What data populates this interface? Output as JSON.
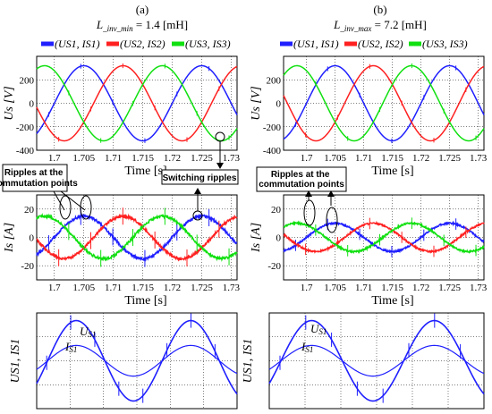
{
  "panels": [
    {
      "label": "(a)",
      "inductance_sym": "L",
      "inductance_sub": "_inv_min",
      "inductance_value": " = 1.4 [mH]"
    },
    {
      "label": "(b)",
      "inductance_sym": "L",
      "inductance_sub": "_inv_max",
      "inductance_value": " = 7.2 [mH]"
    }
  ],
  "legend": [
    {
      "text": "(US1, IS1)",
      "color": "#1f1fff"
    },
    {
      "text": "(US2, IS2)",
      "color": "#ff2020"
    },
    {
      "text": "(US3, IS3)",
      "color": "#10e010"
    }
  ],
  "callouts": {
    "a_top": "Switching ripples",
    "a_mid": "Ripples at the commutation points",
    "b_mid": "Ripples at the commutation points"
  },
  "chart_data": [
    {
      "id": "a_voltage",
      "type": "line",
      "ylabel": "Us [V]",
      "xlabel": "Time [s]",
      "xlim": [
        1.697,
        1.731
      ],
      "ylim": [
        -400,
        400
      ],
      "xticks": [
        1.7,
        1.705,
        1.71,
        1.715,
        1.72,
        1.725,
        1.73
      ],
      "yticks": [
        -400,
        -200,
        0,
        200
      ],
      "series": [
        {
          "name": "US1",
          "color": "#1f1fff",
          "amplitude": 320,
          "phase_deg": 0
        },
        {
          "name": "US2",
          "color": "#ff2020",
          "amplitude": 320,
          "phase_deg": -120
        },
        {
          "name": "US3",
          "color": "#10e010",
          "amplitude": 320,
          "phase_deg": 120
        }
      ],
      "grid": true
    },
    {
      "id": "a_current",
      "type": "line",
      "ylabel": "Is [A]",
      "xlabel": "Time [s]",
      "xlim": [
        1.697,
        1.731
      ],
      "ylim": [
        -30,
        30
      ],
      "xticks": [
        1.7,
        1.705,
        1.71,
        1.715,
        1.72,
        1.725,
        1.73
      ],
      "yticks": [
        -20,
        0,
        20
      ],
      "series": [
        {
          "name": "IS1",
          "color": "#1f1fff",
          "amplitude": 15,
          "phase_deg": 0
        },
        {
          "name": "IS2",
          "color": "#ff2020",
          "amplitude": 15,
          "phase_deg": -120
        },
        {
          "name": "IS3",
          "color": "#10e010",
          "amplitude": 15,
          "phase_deg": 120
        }
      ],
      "grid": true
    },
    {
      "id": "a_zoom",
      "type": "line",
      "ylabel": "US1, IS1",
      "series": [
        {
          "name": "US1",
          "color": "#1f1fff"
        },
        {
          "name": "IS1",
          "color": "#1f1fff"
        }
      ],
      "grid": true
    },
    {
      "id": "b_voltage",
      "type": "line",
      "ylabel": "Us [V]",
      "xlabel": "Time [s]",
      "xlim": [
        1.696,
        1.731
      ],
      "ylim": [
        -400,
        400
      ],
      "xticks": [
        1.7,
        1.705,
        1.71,
        1.715,
        1.72,
        1.725,
        1.73
      ],
      "yticks": [
        -400,
        -200,
        0,
        200
      ],
      "series": [
        {
          "name": "US1",
          "color": "#1f1fff",
          "amplitude": 320,
          "phase_deg": 0
        },
        {
          "name": "US2",
          "color": "#ff2020",
          "amplitude": 320,
          "phase_deg": -120
        },
        {
          "name": "US3",
          "color": "#10e010",
          "amplitude": 320,
          "phase_deg": 120
        }
      ],
      "grid": true
    },
    {
      "id": "b_current",
      "type": "line",
      "ylabel": "Is [A]",
      "xlabel": "Time [s]",
      "xlim": [
        1.696,
        1.731
      ],
      "ylim": [
        -30,
        30
      ],
      "xticks": [
        1.7,
        1.705,
        1.71,
        1.715,
        1.72,
        1.725,
        1.73
      ],
      "yticks": [
        -20,
        0,
        20
      ],
      "series": [
        {
          "name": "IS1",
          "color": "#1f1fff",
          "amplitude": 10,
          "phase_deg": 0
        },
        {
          "name": "IS2",
          "color": "#ff2020",
          "amplitude": 10,
          "phase_deg": -120
        },
        {
          "name": "IS3",
          "color": "#10e010",
          "amplitude": 10,
          "phase_deg": 120
        }
      ],
      "grid": true
    },
    {
      "id": "b_zoom",
      "type": "line",
      "ylabel": "US1, IS1",
      "series": [
        {
          "name": "US1",
          "color": "#1f1fff"
        },
        {
          "name": "IS1",
          "color": "#1f1fff"
        }
      ],
      "grid": true
    }
  ]
}
